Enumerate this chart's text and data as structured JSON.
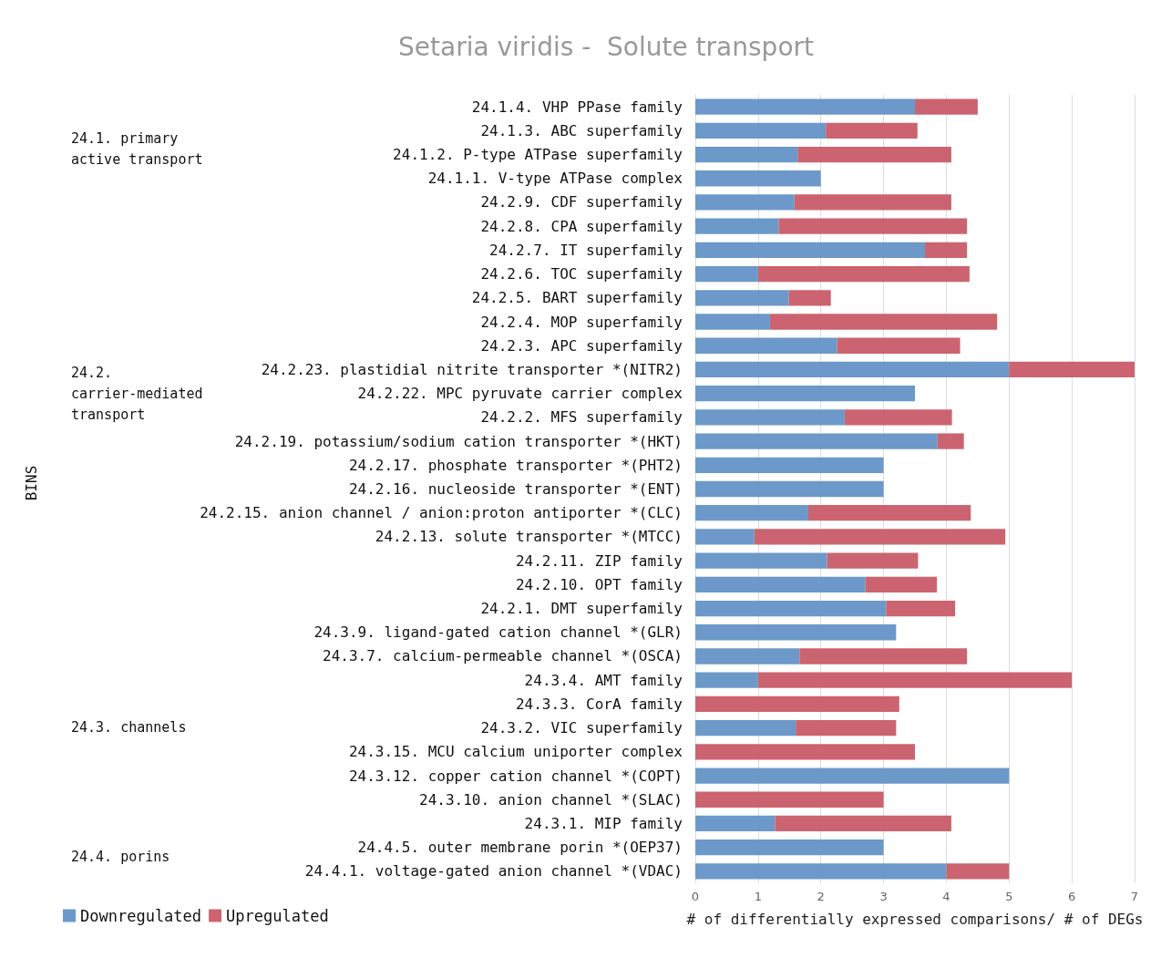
{
  "chart_data": {
    "type": "bar",
    "orientation": "horizontal",
    "stacked": true,
    "title": "Setaria viridis -  Solute transport",
    "xlabel": "# of differentially expressed comparisons/ # of DEGs",
    "categories": [
      "24.1.4. VHP PPase family",
      "24.1.3. ABC superfamily",
      "24.1.2. P-type ATPase superfamily",
      "24.1.1. V-type ATPase complex",
      "24.2.9. CDF superfamily",
      "24.2.8. CPA superfamily",
      "24.2.7. IT superfamily",
      "24.2.6. TOC superfamily",
      "24.2.5. BART superfamily",
      "24.2.4. MOP superfamily",
      "24.2.3. APC superfamily",
      "24.2.23. plastidial nitrite transporter *(NITR2)",
      "24.2.22. MPC pyruvate carrier complex",
      "24.2.2. MFS superfamily",
      "24.2.19. potassium/sodium cation transporter *(HKT)",
      "24.2.17. phosphate transporter *(PHT2)",
      "24.2.16. nucleoside transporter *(ENT)",
      "24.2.15. anion channel / anion:proton antiporter *(CLC)",
      "24.2.13. solute transporter *(MTCC)",
      "24.2.11. ZIP family",
      "24.2.10. OPT family",
      "24.2.1. DMT superfamily",
      "24.3.9. ligand-gated cation channel *(GLR)",
      "24.3.7. calcium-permeable channel *(OSCA)",
      "24.3.4. AMT family",
      "24.3.3. CorA family",
      "24.3.2. VIC superfamily",
      "24.3.15. MCU calcium uniporter complex",
      "24.3.12. copper cation channel *(COPT)",
      "24.3.10. anion channel *(SLAC)",
      "24.3.1. MIP family",
      "24.4.5. outer membrane porin *(OEP37)",
      "24.4.1. voltage-gated anion channel *(VDAC)"
    ],
    "series": [
      {
        "name": "Downregulated",
        "color": "#6494c6",
        "values": [
          3.5,
          2.08,
          1.63,
          2.0,
          1.58,
          1.33,
          3.66,
          1.0,
          1.49,
          1.19,
          2.26,
          5,
          3.5,
          2.38,
          3.86,
          3,
          3,
          1.8,
          0.94,
          2.1,
          2.71,
          3.04,
          3.2,
          1.66,
          1,
          0,
          1.6,
          0,
          5,
          0,
          1.27,
          3,
          4
        ]
      },
      {
        "name": "Upregulated",
        "color": "#c85c68",
        "values": [
          1.0,
          1.46,
          2.45,
          0,
          2.5,
          3.0,
          0.67,
          3.37,
          0.67,
          3.62,
          1.96,
          2,
          0,
          1.71,
          0.42,
          0,
          0,
          2.59,
          4.0,
          1.45,
          1.14,
          1.1,
          0,
          2.67,
          5,
          3.25,
          1.6,
          3.5,
          0,
          3,
          2.81,
          0,
          1
        ]
      }
    ],
    "xlim": [
      0,
      7
    ],
    "xticks": [
      0,
      1,
      2,
      3,
      4,
      5,
      6,
      7
    ],
    "grid": "x",
    "legend": "bottom left",
    "annotations": [
      "BINS",
      "24.1. primary active transport",
      "24.2. carrier-mediated transport",
      "24.3. channels",
      "24.4. porins"
    ]
  }
}
